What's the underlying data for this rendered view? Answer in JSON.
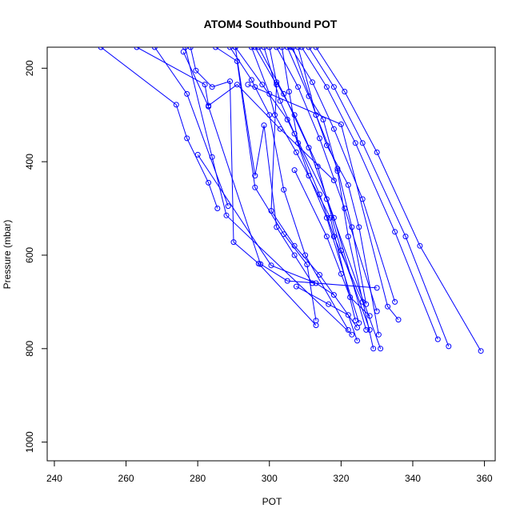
{
  "chart_data": {
    "type": "line",
    "title": "ATOM4 Southbound POT",
    "xlabel": "POT",
    "ylabel": "Pressure (mbar)",
    "xlim": [
      238,
      363
    ],
    "ylim": [
      1040,
      155
    ],
    "y_reversed": true,
    "xticks": [
      240,
      260,
      280,
      300,
      320,
      340,
      360
    ],
    "yticks": [
      200,
      400,
      600,
      800,
      1000
    ],
    "grid": false,
    "legend": "none",
    "marker": "open-circle",
    "color": "#0000ff",
    "series": [
      {
        "x": [
          276.5,
          284.0,
          288.0,
          323.0
        ],
        "y": [
          155,
          390,
          515,
          770
        ]
      },
      {
        "x": [
          290.5,
          298.0,
          305.0,
          316.0,
          331.0
        ],
        "y": [
          155,
          235,
          310,
          480,
          800
        ]
      },
      {
        "x": [
          297.0,
          304.0,
          311.0,
          318.0,
          327.0
        ],
        "y": [
          155,
          255,
          370,
          520,
          760
        ]
      },
      {
        "x": [
          302.0,
          308.0,
          314.0,
          321.0,
          330.0
        ],
        "y": [
          155,
          240,
          350,
          500,
          720
        ]
      },
      {
        "x": [
          306.0,
          312.0,
          318.0,
          326.0,
          335.0
        ],
        "y": [
          155,
          230,
          330,
          480,
          700
        ]
      },
      {
        "x": [
          309.0,
          316.0,
          324.0,
          335.0,
          347.0
        ],
        "y": [
          155,
          240,
          360,
          550,
          780
        ]
      },
      {
        "x": [
          311.0,
          318.0,
          326.0,
          338.0,
          350.0
        ],
        "y": [
          155,
          240,
          360,
          560,
          795
        ]
      },
      {
        "x": [
          313.0,
          321.0,
          330.0,
          342.0,
          359.0
        ],
        "y": [
          155,
          250,
          380,
          580,
          805
        ]
      },
      {
        "x": [
          253.0,
          274.0,
          277.0,
          283.0,
          285.5
        ],
        "y": [
          155,
          278,
          350,
          445,
          500
        ]
      },
      {
        "x": [
          263.0,
          282.0,
          283.0,
          291.0,
          303.0,
          318.0
        ],
        "y": [
          155,
          235,
          280,
          235,
          330,
          440
        ]
      },
      {
        "x": [
          278.0,
          279.5,
          284.0,
          289.0,
          290.0,
          297.0,
          313.0
        ],
        "y": [
          155,
          205,
          240,
          228,
          572,
          618,
          750
        ]
      },
      {
        "x": [
          289.0,
          295.0,
          296.0,
          300.0,
          304.0,
          310.0,
          322.0
        ],
        "y": [
          155,
          225,
          240,
          300,
          460,
          600,
          760
        ]
      },
      {
        "x": [
          295.0,
          300.0,
          301.5,
          307.5,
          317.0,
          324.0
        ],
        "y": [
          155,
          255,
          300,
          380,
          520,
          740
        ]
      },
      {
        "x": [
          298.5,
          303.0,
          307.0,
          311.0,
          316.0,
          325.0
        ],
        "y": [
          155,
          270,
          340,
          430,
          520,
          745
        ]
      },
      {
        "x": [
          300.0,
          302.0,
          307.0,
          313.5,
          320.0,
          328.0
        ],
        "y": [
          155,
          230,
          300,
          410,
          590,
          760
        ]
      },
      {
        "x": [
          303.5,
          305.5,
          308.0,
          314.0,
          318.0,
          326.0
        ],
        "y": [
          155,
          250,
          360,
          470,
          560,
          700
        ]
      },
      {
        "x": [
          305.0,
          311.0,
          315.0,
          319.0,
          322.0,
          329.0
        ],
        "y": [
          155,
          260,
          310,
          420,
          560,
          800
        ]
      },
      {
        "x": [
          308.0,
          313.0,
          316.0,
          322.0,
          325.0,
          330.5
        ],
        "y": [
          155,
          300,
          365,
          450,
          540,
          770
        ]
      },
      {
        "x": [
          306.5,
          313.0,
          319.0,
          323.0,
          327.0
        ],
        "y": [
          155,
          300,
          415,
          540,
          705
        ]
      },
      {
        "x": [
          290.5,
          296.0,
          298.5,
          302.0,
          307.0,
          312.0
        ],
        "y": [
          155,
          430,
          322,
          540,
          600,
          660
        ]
      },
      {
        "x": [
          285.0,
          291.0,
          296.0,
          304.0,
          310.5,
          313.0
        ],
        "y": [
          155,
          185,
          455,
          555,
          620,
          740
        ]
      },
      {
        "x": [
          296.0,
          302.0,
          300.5,
          307.0,
          314.0,
          324.5
        ],
        "y": [
          155,
          235,
          505,
          580,
          642,
          755
        ]
      },
      {
        "x": [
          268.0,
          277.0,
          288.5
        ],
        "y": [
          155,
          255,
          495
        ]
      },
      {
        "x": [
          276.0,
          283.0,
          297.5,
          305.0,
          330.0
        ],
        "y": [
          165,
          282,
          619,
          655,
          670
        ]
      },
      {
        "x": [
          307.5,
          316.5,
          322.0,
          324.5
        ],
        "y": [
          667,
          705,
          728,
          783
        ]
      },
      {
        "x": [
          294.0,
          320.0,
          333.0,
          336.0
        ],
        "y": [
          235,
          320,
          710,
          738
        ]
      },
      {
        "x": [
          307.0,
          316.0,
          320.0,
          322.5,
          328.0
        ],
        "y": [
          418,
          560,
          640,
          690,
          730
        ]
      },
      {
        "x": [
          280.0,
          300.5,
          313.0,
          318.0
        ],
        "y": [
          385,
          622,
          660,
          685
        ]
      }
    ]
  }
}
